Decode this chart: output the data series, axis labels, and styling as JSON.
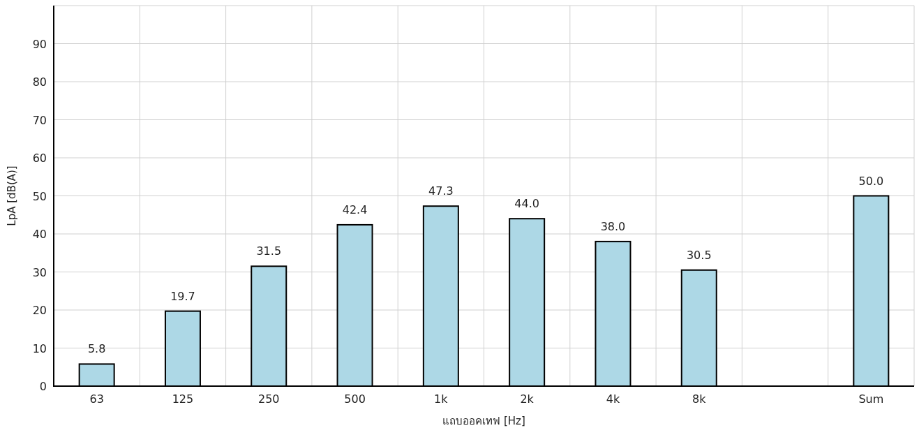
{
  "chart_data": {
    "type": "bar",
    "categories": [
      "63",
      "125",
      "250",
      "500",
      "1k",
      "2k",
      "4k",
      "8k",
      null,
      "Sum"
    ],
    "values": [
      5.8,
      19.7,
      31.5,
      42.4,
      47.3,
      44.0,
      38.0,
      30.5,
      0,
      50.0
    ],
    "value_labels": [
      "5.8",
      "19.7",
      "31.5",
      "42.4",
      "47.3",
      "44.0",
      "38.0",
      "30.5",
      null,
      "50.0"
    ],
    "color": "#add8e6",
    "xlabel": "แถบออคเทฟ [Hz]",
    "ylabel": "LpA [dB(A)]",
    "ylim": [
      0,
      100
    ],
    "yticks": [
      0,
      10,
      20,
      30,
      40,
      50,
      60,
      70,
      80,
      90,
      {
        "value": 100,
        "label": null
      }
    ],
    "grid": true
  }
}
